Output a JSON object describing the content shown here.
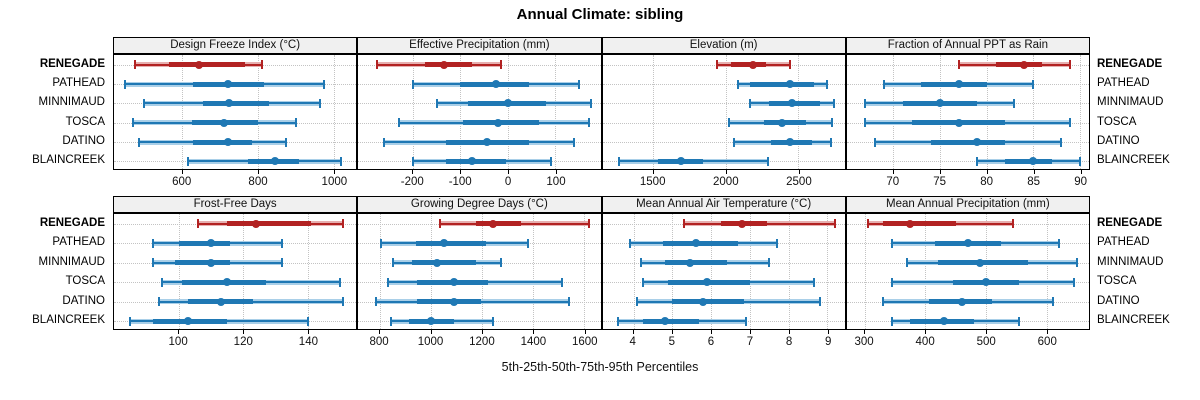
{
  "title": "Annual Climate: sibling",
  "footer": "5th-25th-50th-75th-95th Percentiles",
  "sites": [
    "RENEGADE",
    "PATHEAD",
    "MINNIMAUD",
    "TOSCA",
    "DATINO",
    "BLAINCREEK"
  ],
  "highlight_site": "RENEGADE",
  "colors": {
    "highlight": "#B22222",
    "highlight_light": "#E6AFAF",
    "normal": "#1F78B4",
    "normal_light": "#A9CFE8",
    "header_bg": "#F0F0F0",
    "panel_border": "#000000",
    "grid": "#C3C3C3"
  },
  "chart_data": {
    "type": "percentile_whisker",
    "percentile_labels": [
      5,
      25,
      50,
      75,
      95
    ],
    "legend_position": "none",
    "grid": "dotted",
    "panels": [
      {
        "row": 0,
        "col": 0,
        "title": "Design Freeze Index (°C)",
        "xlim": [
          420,
          1060
        ],
        "xticks": [
          600,
          800,
          1000
        ],
        "series": [
          {
            "name": "RENEGADE",
            "p": [
              475,
              565,
              645,
              765,
              810
            ]
          },
          {
            "name": "PATHEAD",
            "p": [
              450,
              630,
              720,
              815,
              975
            ]
          },
          {
            "name": "MINNIMAUD",
            "p": [
              500,
              655,
              725,
              830,
              965
            ]
          },
          {
            "name": "TOSCA",
            "p": [
              470,
              625,
              710,
              800,
              900
            ]
          },
          {
            "name": "DATINO",
            "p": [
              485,
              630,
              720,
              785,
              875
            ]
          },
          {
            "name": "BLAINCREEK",
            "p": [
              615,
              775,
              845,
              910,
              1020
            ]
          }
        ]
      },
      {
        "row": 0,
        "col": 1,
        "title": "Effective Precipitation (mm)",
        "xlim": [
          -315,
          195
        ],
        "xticks": [
          -200,
          -100,
          0,
          100
        ],
        "series": [
          {
            "name": "RENEGADE",
            "p": [
              -275,
              -175,
              -135,
              -75,
              -15
            ]
          },
          {
            "name": "PATHEAD",
            "p": [
              -200,
              -100,
              -25,
              45,
              150
            ]
          },
          {
            "name": "MINNIMAUD",
            "p": [
              -150,
              -85,
              0,
              80,
              175
            ]
          },
          {
            "name": "TOSCA",
            "p": [
              -230,
              -95,
              -20,
              65,
              170
            ]
          },
          {
            "name": "DATINO",
            "p": [
              -260,
              -130,
              -45,
              45,
              140
            ]
          },
          {
            "name": "BLAINCREEK",
            "p": [
              -200,
              -130,
              -75,
              -5,
              90
            ]
          }
        ]
      },
      {
        "row": 0,
        "col": 2,
        "title": "Elevation (m)",
        "xlim": [
          1150,
          2820
        ],
        "xticks": [
          1500,
          2000,
          2500
        ],
        "series": [
          {
            "name": "RENEGADE",
            "p": [
              1940,
              2035,
              2185,
              2275,
              2440
            ]
          },
          {
            "name": "PATHEAD",
            "p": [
              2085,
              2170,
              2440,
              2605,
              2695
            ]
          },
          {
            "name": "MINNIMAUD",
            "p": [
              2170,
              2295,
              2455,
              2650,
              2745
            ]
          },
          {
            "name": "TOSCA",
            "p": [
              2025,
              2260,
              2390,
              2550,
              2730
            ]
          },
          {
            "name": "DATINO",
            "p": [
              2055,
              2310,
              2440,
              2595,
              2725
            ]
          },
          {
            "name": "BLAINCREEK",
            "p": [
              1265,
              1530,
              1690,
              1840,
              2290
            ]
          }
        ]
      },
      {
        "row": 0,
        "col": 3,
        "title": "Fraction of Annual PPT as Rain",
        "xlim": [
          65,
          91
        ],
        "xticks": [
          70,
          75,
          80,
          85,
          90
        ],
        "series": [
          {
            "name": "RENEGADE",
            "p": [
              77,
              81,
              84,
              86,
              89
            ]
          },
          {
            "name": "PATHEAD",
            "p": [
              69,
              73,
              77,
              80,
              85
            ]
          },
          {
            "name": "MINNIMAUD",
            "p": [
              67,
              71,
              75,
              79,
              83
            ]
          },
          {
            "name": "TOSCA",
            "p": [
              67,
              72,
              77,
              82,
              89
            ]
          },
          {
            "name": "DATINO",
            "p": [
              68,
              74,
              79,
              82,
              88
            ]
          },
          {
            "name": "BLAINCREEK",
            "p": [
              79,
              82,
              85,
              87,
              90
            ]
          }
        ]
      },
      {
        "row": 1,
        "col": 0,
        "title": "Frost-Free Days",
        "xlim": [
          80,
          155
        ],
        "xticks": [
          100,
          120,
          140
        ],
        "series": [
          {
            "name": "RENEGADE",
            "p": [
              106,
              115,
              124,
              141,
              151
            ]
          },
          {
            "name": "PATHEAD",
            "p": [
              92,
              100,
              110,
              116,
              132
            ]
          },
          {
            "name": "MINNIMAUD",
            "p": [
              92,
              99,
              110,
              116,
              132
            ]
          },
          {
            "name": "TOSCA",
            "p": [
              95,
              101,
              115,
              127,
              150
            ]
          },
          {
            "name": "DATINO",
            "p": [
              94,
              103,
              113,
              123,
              151
            ]
          },
          {
            "name": "BLAINCREEK",
            "p": [
              85,
              92,
              103,
              115,
              140
            ]
          }
        ]
      },
      {
        "row": 1,
        "col": 1,
        "title": "Growing Degree Days (°C)",
        "xlim": [
          715,
          1665
        ],
        "xticks": [
          800,
          1000,
          1200,
          1400,
          1600
        ],
        "series": [
          {
            "name": "RENEGADE",
            "p": [
              1035,
              1175,
              1245,
              1355,
              1620
            ]
          },
          {
            "name": "PATHEAD",
            "p": [
              805,
              940,
              1050,
              1215,
              1380
            ]
          },
          {
            "name": "MINNIMAUD",
            "p": [
              850,
              925,
              1025,
              1175,
              1275
            ]
          },
          {
            "name": "TOSCA",
            "p": [
              830,
              945,
              1090,
              1225,
              1515
            ]
          },
          {
            "name": "DATINO",
            "p": [
              785,
              945,
              1090,
              1195,
              1540
            ]
          },
          {
            "name": "BLAINCREEK",
            "p": [
              845,
              915,
              1000,
              1090,
              1245
            ]
          }
        ]
      },
      {
        "row": 1,
        "col": 2,
        "title": "Mean Annual Air Temperature (°C)",
        "xlim": [
          3.2,
          9.45
        ],
        "xticks": [
          4,
          5,
          6,
          7,
          8,
          9
        ],
        "series": [
          {
            "name": "RENEGADE",
            "p": [
              5.3,
              6.25,
              6.8,
              7.45,
              9.2
            ]
          },
          {
            "name": "PATHEAD",
            "p": [
              3.9,
              4.75,
              5.6,
              6.7,
              7.7
            ]
          },
          {
            "name": "MINNIMAUD",
            "p": [
              4.2,
              4.8,
              5.45,
              6.4,
              7.5
            ]
          },
          {
            "name": "TOSCA",
            "p": [
              4.25,
              4.9,
              5.9,
              7.0,
              8.65
            ]
          },
          {
            "name": "DATINO",
            "p": [
              4.1,
              5.0,
              5.8,
              6.85,
              8.8
            ]
          },
          {
            "name": "BLAINCREEK",
            "p": [
              3.6,
              4.25,
              4.8,
              5.7,
              6.9
            ]
          }
        ]
      },
      {
        "row": 1,
        "col": 3,
        "title": "Mean Annual Precipitation (mm)",
        "xlim": [
          270,
          670
        ],
        "xticks": [
          300,
          400,
          500,
          600
        ],
        "series": [
          {
            "name": "RENEGADE",
            "p": [
              305,
              330,
              375,
              450,
              545
            ]
          },
          {
            "name": "PATHEAD",
            "p": [
              345,
              415,
              470,
              525,
              620
            ]
          },
          {
            "name": "MINNIMAUD",
            "p": [
              370,
              420,
              490,
              570,
              650
            ]
          },
          {
            "name": "TOSCA",
            "p": [
              345,
              445,
              500,
              555,
              645
            ]
          },
          {
            "name": "DATINO",
            "p": [
              330,
              405,
              460,
              510,
              610
            ]
          },
          {
            "name": "BLAINCREEK",
            "p": [
              345,
              375,
              430,
              480,
              555
            ]
          }
        ]
      }
    ]
  }
}
